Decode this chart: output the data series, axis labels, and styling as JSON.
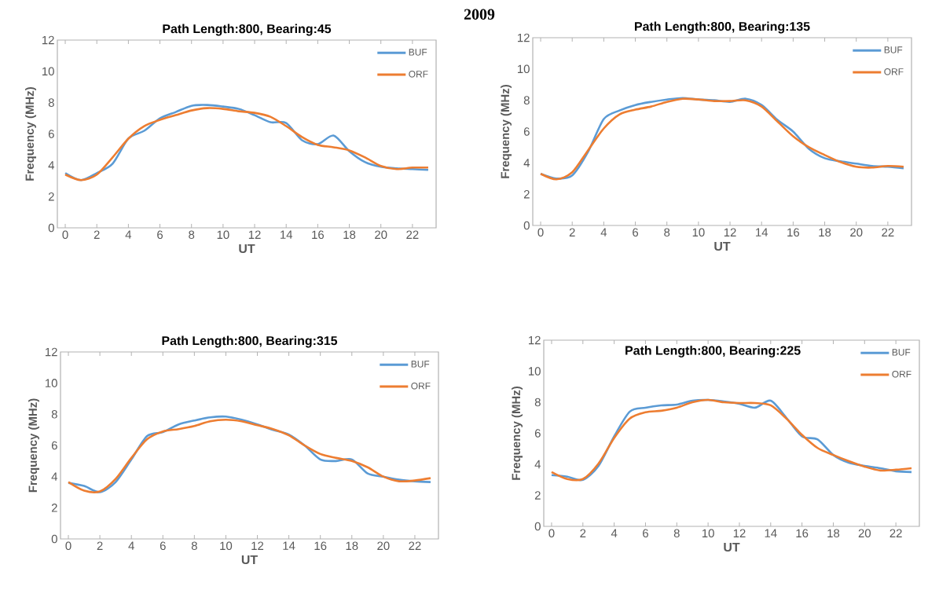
{
  "chart_data": [
    {
      "type": "other",
      "title": "2009"
    },
    {
      "type": "line",
      "title": "Path Length:800, Bearing:45",
      "xlabel": "UT",
      "ylabel": "Frequency (MHz)",
      "legend": "top right",
      "x": [
        0,
        1,
        2,
        3,
        4,
        5,
        6,
        7,
        8,
        9,
        10,
        11,
        12,
        13,
        14,
        15,
        16,
        17,
        18,
        19,
        20,
        21,
        22,
        23
      ],
      "xlim": [
        -0.5,
        23.5
      ],
      "xticks": [
        0,
        2,
        4,
        6,
        8,
        10,
        12,
        14,
        16,
        18,
        20,
        22
      ],
      "ylim": [
        0,
        12
      ],
      "yticks": [
        0,
        2,
        4,
        6,
        8,
        10,
        12
      ],
      "series": [
        {
          "name": "BUF",
          "color": "#5b9bd5",
          "values": [
            3.5,
            3.05,
            3.5,
            4.1,
            5.7,
            6.2,
            7.0,
            7.4,
            7.8,
            7.85,
            7.75,
            7.6,
            7.2,
            6.75,
            6.7,
            5.6,
            5.35,
            5.9,
            4.9,
            4.2,
            3.9,
            3.8,
            3.75,
            3.7
          ]
        },
        {
          "name": "ORF",
          "color": "#ed7d31",
          "values": [
            3.4,
            3.05,
            3.4,
            4.5,
            5.7,
            6.5,
            6.9,
            7.2,
            7.5,
            7.65,
            7.6,
            7.45,
            7.35,
            7.1,
            6.5,
            5.8,
            5.3,
            5.15,
            4.95,
            4.5,
            3.95,
            3.75,
            3.85,
            3.85
          ]
        }
      ]
    },
    {
      "type": "line",
      "title": "Path Length:800, Bearing:135",
      "xlabel": "UT",
      "ylabel": "Frequency (MHz)",
      "legend": "top right",
      "x": [
        0,
        1,
        2,
        3,
        4,
        5,
        6,
        7,
        8,
        9,
        10,
        11,
        12,
        13,
        14,
        15,
        16,
        17,
        18,
        19,
        20,
        21,
        22,
        23
      ],
      "xlim": [
        -0.5,
        23.5
      ],
      "xticks": [
        0,
        2,
        4,
        6,
        8,
        10,
        12,
        14,
        16,
        18,
        20,
        22
      ],
      "ylim": [
        0,
        12
      ],
      "yticks": [
        0,
        2,
        4,
        6,
        8,
        10,
        12
      ],
      "series": [
        {
          "name": "BUF",
          "color": "#5b9bd5",
          "values": [
            3.3,
            3.0,
            3.2,
            4.7,
            6.8,
            7.35,
            7.7,
            7.9,
            8.05,
            8.15,
            8.05,
            8.0,
            7.9,
            8.1,
            7.7,
            6.75,
            6.0,
            4.9,
            4.3,
            4.1,
            3.95,
            3.8,
            3.75,
            3.65
          ]
        },
        {
          "name": "ORF",
          "color": "#ed7d31",
          "values": [
            3.3,
            2.95,
            3.4,
            4.8,
            6.2,
            7.1,
            7.4,
            7.6,
            7.9,
            8.1,
            8.05,
            7.95,
            7.95,
            8.0,
            7.6,
            6.65,
            5.7,
            5.0,
            4.5,
            4.05,
            3.75,
            3.7,
            3.8,
            3.75
          ]
        }
      ]
    },
    {
      "type": "line",
      "title": "Path Length:800, Bearing:315",
      "xlabel": "UT",
      "ylabel": "Frequency (MHz)",
      "legend": "top right",
      "x": [
        0,
        1,
        2,
        3,
        4,
        5,
        6,
        7,
        8,
        9,
        10,
        11,
        12,
        13,
        14,
        15,
        16,
        17,
        18,
        19,
        20,
        21,
        22,
        23
      ],
      "xlim": [
        -0.5,
        23.5
      ],
      "xticks": [
        0,
        2,
        4,
        6,
        8,
        10,
        12,
        14,
        16,
        18,
        20,
        22
      ],
      "ylim": [
        0,
        12
      ],
      "yticks": [
        0,
        2,
        4,
        6,
        8,
        10,
        12
      ],
      "series": [
        {
          "name": "BUF",
          "color": "#5b9bd5",
          "values": [
            3.6,
            3.4,
            3.0,
            3.65,
            5.1,
            6.6,
            6.85,
            7.35,
            7.6,
            7.8,
            7.85,
            7.65,
            7.35,
            7.0,
            6.7,
            6.0,
            5.1,
            5.0,
            5.1,
            4.2,
            4.0,
            3.8,
            3.7,
            3.65
          ]
        },
        {
          "name": "ORF",
          "color": "#ed7d31",
          "values": [
            3.65,
            3.1,
            3.05,
            3.85,
            5.2,
            6.4,
            6.9,
            7.05,
            7.25,
            7.55,
            7.65,
            7.55,
            7.3,
            7.05,
            6.65,
            6.0,
            5.45,
            5.2,
            5.0,
            4.6,
            4.0,
            3.7,
            3.75,
            3.9
          ]
        }
      ]
    },
    {
      "type": "line",
      "title": "Path Length:800, Bearing:225",
      "xlabel": "UT",
      "ylabel": "Frequency (MHz)",
      "legend": "top right",
      "x": [
        0,
        1,
        2,
        3,
        4,
        5,
        6,
        7,
        8,
        9,
        10,
        11,
        12,
        13,
        14,
        15,
        16,
        17,
        18,
        19,
        20,
        21,
        22,
        23
      ],
      "xlim": [
        -0.5,
        23.5
      ],
      "xticks": [
        0,
        2,
        4,
        6,
        8,
        10,
        12,
        14,
        16,
        18,
        20,
        22
      ],
      "ylim": [
        0,
        12
      ],
      "yticks": [
        0,
        2,
        4,
        6,
        8,
        10,
        12
      ],
      "series": [
        {
          "name": "BUF",
          "color": "#5b9bd5",
          "values": [
            3.3,
            3.2,
            3.0,
            3.9,
            5.8,
            7.4,
            7.65,
            7.8,
            7.85,
            8.1,
            8.15,
            8.05,
            7.9,
            7.65,
            8.1,
            7.0,
            5.8,
            5.6,
            4.6,
            4.1,
            3.9,
            3.75,
            3.55,
            3.5
          ]
        },
        {
          "name": "ORF",
          "color": "#ed7d31",
          "values": [
            3.5,
            3.05,
            3.05,
            4.05,
            5.7,
            6.95,
            7.35,
            7.45,
            7.65,
            8.0,
            8.15,
            8.0,
            7.95,
            7.95,
            7.8,
            6.95,
            5.9,
            5.05,
            4.6,
            4.2,
            3.85,
            3.6,
            3.65,
            3.75
          ]
        }
      ]
    }
  ]
}
